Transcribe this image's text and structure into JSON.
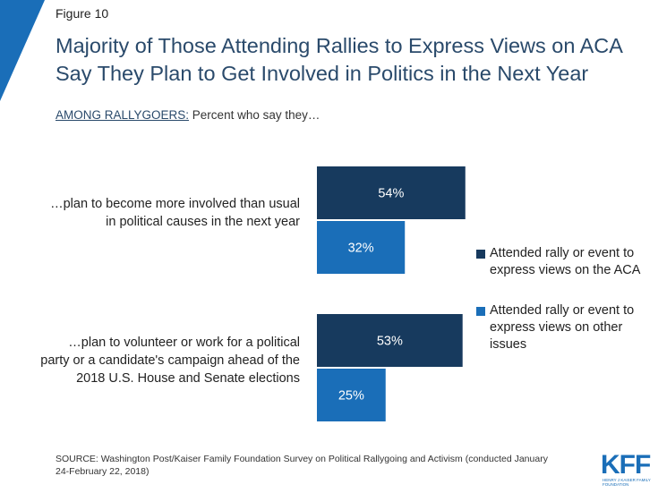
{
  "figure_label": "Figure 10",
  "title": "Majority of Those Attending Rallies to Express Views on ACA Say They Plan to Get Involved in Politics in the Next Year",
  "subtitle_lead": "AMONG RALLYGOERS:",
  "subtitle_rest": " Percent who say they…",
  "source": "SOURCE: Washington Post/Kaiser Family Foundation Survey on Political Rallygoing and Activism (conducted January 24-February 22, 2018)",
  "logo": {
    "text": "KFF",
    "subtext": "HENRY J KAISER FAMILY FOUNDATION"
  },
  "colors": {
    "accent": "#1a6eb8",
    "dark_navy": "#173a5e",
    "title": "#2a4a6b"
  },
  "chart_data": {
    "type": "bar",
    "orientation": "horizontal",
    "categories": [
      "…plan to become more involved than usual in political causes in the next year",
      "…plan to volunteer or work for a political party or a candidate's campaign ahead of the 2018 U.S. House and Senate elections"
    ],
    "series": [
      {
        "name": "Attended rally or event to express views on the ACA",
        "values": [
          54,
          53
        ],
        "labels": [
          "54%",
          "53%"
        ],
        "color": "#173a5e"
      },
      {
        "name": "Attended rally or event to express views on other issues",
        "values": [
          32,
          25
        ],
        "labels": [
          "32%",
          "25%"
        ],
        "color": "#1a6eb8"
      }
    ],
    "xlim": [
      0,
      100
    ],
    "legend": "right"
  }
}
